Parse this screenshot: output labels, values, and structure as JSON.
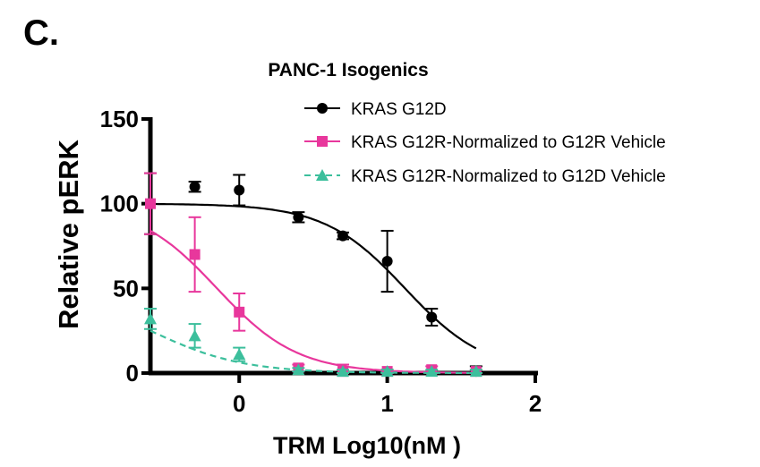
{
  "panel_label": "C.",
  "chart_data": {
    "type": "scatter",
    "title": "PANC-1 Isogenics",
    "xlabel": "TRM Log10(nM )",
    "ylabel": "Relative pERK",
    "xlim": [
      -0.6,
      2
    ],
    "ylim": [
      0,
      150
    ],
    "xticks": [
      0,
      1,
      2
    ],
    "xtick_labels": [
      "0",
      "1",
      "2"
    ],
    "yticks": [
      0,
      50,
      100,
      150
    ],
    "ytick_labels": [
      "0",
      "50",
      "100",
      "150"
    ],
    "legend_position": "top-right",
    "series": [
      {
        "name": "KRAS G12D",
        "color": "#000000",
        "marker": "circle",
        "line_style": "solid",
        "fit": {
          "top": 100,
          "bottom": 0,
          "log_ic50": 1.12,
          "hill": 1.6
        },
        "fit_range": [
          -0.6,
          1.6
        ],
        "points": [
          {
            "x": -0.6,
            "y": 100,
            "err": 18
          },
          {
            "x": -0.3,
            "y": 110,
            "err": 3
          },
          {
            "x": 0.0,
            "y": 108,
            "err": 9
          },
          {
            "x": 0.4,
            "y": 92,
            "err": 3
          },
          {
            "x": 0.7,
            "y": 81,
            "err": 2
          },
          {
            "x": 1.0,
            "y": 66,
            "err": 18
          },
          {
            "x": 1.3,
            "y": 33,
            "err": 5
          },
          {
            "x": 1.6,
            "y": 1,
            "err": 3
          }
        ]
      },
      {
        "name": "KRAS G12R-Normalized to G12R Vehicle",
        "color": "#e8379c",
        "marker": "square",
        "line_style": "solid",
        "fit": {
          "top": 100,
          "bottom": 0,
          "log_ic50": -0.15,
          "hill": 1.6
        },
        "fit_range": [
          -0.6,
          1.6
        ],
        "points": [
          {
            "x": -0.6,
            "y": 100,
            "err": 18
          },
          {
            "x": -0.3,
            "y": 70,
            "err": 22
          },
          {
            "x": 0.0,
            "y": 36,
            "err": 11
          },
          {
            "x": 0.4,
            "y": 3,
            "err": 2
          },
          {
            "x": 0.7,
            "y": 1,
            "err": 4
          },
          {
            "x": 1.0,
            "y": 1,
            "err": 1
          },
          {
            "x": 1.3,
            "y": 2,
            "err": 2
          },
          {
            "x": 1.6,
            "y": 1,
            "err": 1
          }
        ]
      },
      {
        "name": "KRAS G12R-Normalized to  G12D Vehicle",
        "color": "#3cbf9c",
        "marker": "triangle",
        "line_style": "dashed",
        "fit": {
          "top": 50,
          "bottom": 0,
          "log_ic50": -0.6,
          "hill": 1.4
        },
        "fit_range": [
          -0.6,
          1.6
        ],
        "points": [
          {
            "x": -0.6,
            "y": 32,
            "err": 6
          },
          {
            "x": -0.3,
            "y": 22,
            "err": 7
          },
          {
            "x": 0.0,
            "y": 11,
            "err": 4
          },
          {
            "x": 0.4,
            "y": 2,
            "err": 1
          },
          {
            "x": 0.7,
            "y": 1,
            "err": 1
          },
          {
            "x": 1.0,
            "y": 1,
            "err": 1
          },
          {
            "x": 1.3,
            "y": 1,
            "err": 1
          },
          {
            "x": 1.6,
            "y": 1,
            "err": 1
          }
        ]
      }
    ]
  }
}
